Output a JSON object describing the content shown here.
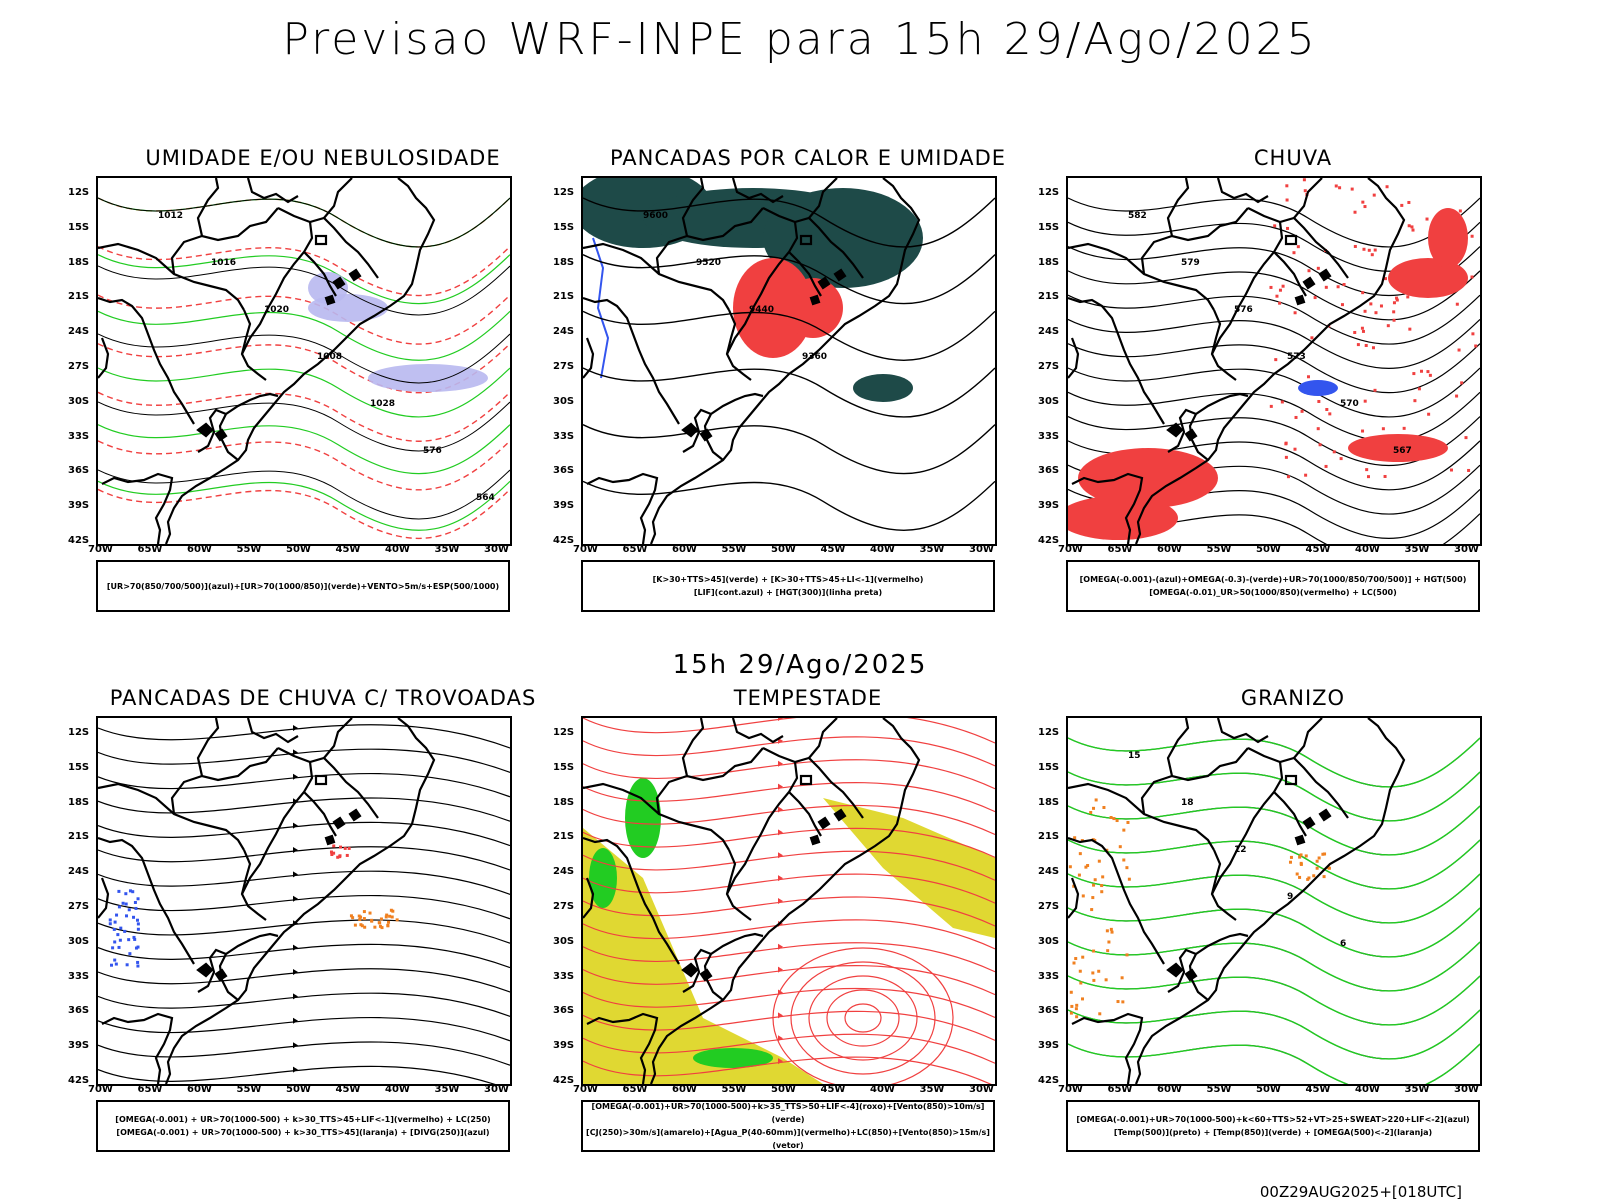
{
  "header": {
    "title": "Previsao WRF-INPE  para 15h 29/Ago/2025"
  },
  "mid_date": "15h 29/Ago/2025",
  "footer": "00Z29AUG2025+[018UTC]",
  "lat_ticks": [
    "12S",
    "15S",
    "18S",
    "21S",
    "24S",
    "27S",
    "30S",
    "33S",
    "36S",
    "39S",
    "42S"
  ],
  "lon_ticks": [
    "70W",
    "65W",
    "60W",
    "55W",
    "50W",
    "45W",
    "40W",
    "35W",
    "30W"
  ],
  "panels": [
    {
      "title": "UMIDADE E/OU NEBULOSIDADE",
      "legend": [
        "[UR>70(850/700/500)](azul)+[UR>70(1000/850)](verde)+VENTO>5m/s+ESP(500/1000)"
      ],
      "contour_labels": [
        "1012",
        "1016",
        "1020",
        "1008",
        "1028",
        "576",
        "564"
      ]
    },
    {
      "title": "PANCADAS POR CALOR E UMIDADE",
      "legend": [
        "[K>30+TTS>45](verde) + [K>30+TTS>45+LI<-1](vermelho)",
        "[LIF](cont.azul) + [HGT(300)](linha preta)"
      ],
      "contour_labels": [
        "9600",
        "9520",
        "9440",
        "9360"
      ]
    },
    {
      "title": "CHUVA",
      "legend": [
        "[OMEGA(-0.001)-(azul)+OMEGA(-0.3)-(verde)+UR>70(1000/850/700/500)] + HGT(500)",
        "[OMEGA(-0.01)_UR>50(1000/850)(vermelho) + LC(500)"
      ],
      "contour_labels": [
        "582",
        "579",
        "576",
        "573",
        "570",
        "567"
      ]
    },
    {
      "title": "PANCADAS DE CHUVA C/ TROVOADAS",
      "legend": [
        "[OMEGA(-0.001) + UR>70(1000-500) + k>30_TTS>45+LIF<-1](vermelho) + LC(250)",
        "[OMEGA(-0.001) + UR>70(1000-500) + k>30_TTS>45](laranja) + [DIVG(250)](azul)"
      ],
      "contour_labels": []
    },
    {
      "title": "TEMPESTADE",
      "legend": [
        "[OMEGA(-0.001)+UR>70(1000-500)+k>35_TTS>50+LIF<-4](roxo)+[Vento(850)>10m/s](verde)",
        "[CJ(250)>30m/s](amarelo)+[Agua_P(40-60mm)](vermelho)+LC(850)+[Vento(850)>15m/s](vetor)"
      ],
      "contour_labels": []
    },
    {
      "title": "GRANIZO",
      "legend": [
        "[OMEGA(-0.001)+UR>70(1000-500)+k<60+TTS>52+VT>25+SWEAT>220+LIF<-2](azul)",
        "[Temp(500)](preto) + [Temp(850)](verde) + [OMEGA(500)<-2](laranja)"
      ],
      "contour_labels": [
        "15",
        "18",
        "12",
        "9",
        "6"
      ]
    }
  ],
  "colors": {
    "moist_blue": "#b8b8f0",
    "green": "#22cc22",
    "red": "#f04040",
    "dark_teal": "#1e4a48",
    "yellow": "#e0d832",
    "orange": "#f08020",
    "blue": "#3355ee"
  }
}
